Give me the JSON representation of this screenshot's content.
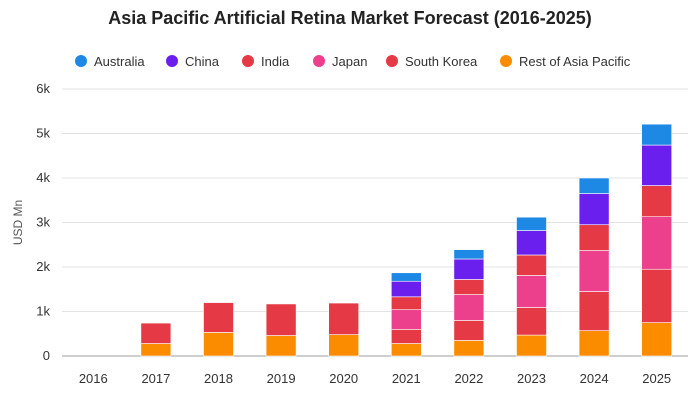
{
  "chart_data": {
    "type": "bar",
    "stacked": true,
    "title": "Asia Pacific Artificial Retina Market Forecast (2016-2025)",
    "xlabel": "",
    "ylabel": "USD Mn",
    "categories": [
      "2016",
      "2017",
      "2018",
      "2019",
      "2020",
      "2021",
      "2022",
      "2023",
      "2024",
      "2025"
    ],
    "ylim": [
      0,
      6000
    ],
    "yticks": [
      0,
      1000,
      2000,
      3000,
      4000,
      5000,
      6000
    ],
    "ytick_labels": [
      "0",
      "1k",
      "2k",
      "3k",
      "4k",
      "5k",
      "6k"
    ],
    "grid": true,
    "legend": "top",
    "series": [
      {
        "name": "Rest of Asia Pacific",
        "color": "#FB8C00",
        "values": [
          0,
          280,
          530,
          460,
          480,
          280,
          350,
          470,
          570,
          750
        ]
      },
      {
        "name": "South Korea",
        "color": "#E53945",
        "values": [
          0,
          460,
          670,
          710,
          710,
          320,
          450,
          620,
          880,
          1200
        ]
      },
      {
        "name": "India",
        "color": "#E53945",
        "values": [
          0,
          0,
          0,
          0,
          0,
          0,
          0,
          0,
          0,
          0
        ]
      },
      {
        "name": "Japan",
        "color": "#EC3F8C",
        "values": [
          0,
          0,
          0,
          0,
          0,
          440,
          580,
          720,
          920,
          1180
        ]
      },
      {
        "name": "India",
        "color": "#E53945",
        "values": [
          0,
          0,
          0,
          0,
          0,
          290,
          340,
          460,
          580,
          700
        ]
      },
      {
        "name": "China",
        "color": "#6A1FEF",
        "values": [
          0,
          0,
          0,
          0,
          0,
          350,
          460,
          550,
          700,
          910
        ]
      },
      {
        "name": "Australia",
        "color": "#1E88E5",
        "values": [
          0,
          0,
          0,
          0,
          0,
          190,
          210,
          300,
          350,
          470
        ]
      }
    ],
    "legend_entries": [
      {
        "name": "Australia",
        "color": "#1E88E5"
      },
      {
        "name": "China",
        "color": "#6A1FEF"
      },
      {
        "name": "India",
        "color": "#E53945"
      },
      {
        "name": "Japan",
        "color": "#EC3F8C"
      },
      {
        "name": "South Korea",
        "color": "#E53945"
      },
      {
        "name": "Rest of Asia Pacific",
        "color": "#FB8C00"
      }
    ]
  }
}
